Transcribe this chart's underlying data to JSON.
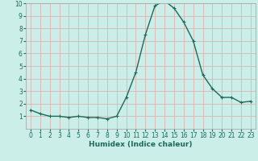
{
  "x": [
    0,
    1,
    2,
    3,
    4,
    5,
    6,
    7,
    8,
    9,
    10,
    11,
    12,
    13,
    14,
    15,
    16,
    17,
    18,
    19,
    20,
    21,
    22,
    23
  ],
  "y": [
    1.5,
    1.2,
    1.0,
    1.0,
    0.9,
    1.0,
    0.9,
    0.9,
    0.8,
    1.0,
    2.5,
    4.5,
    7.5,
    9.8,
    10.2,
    9.6,
    8.5,
    7.0,
    4.3,
    3.2,
    2.5,
    2.5,
    2.1,
    2.2
  ],
  "line_color": "#1a6b5a",
  "bg_color": "#cceee8",
  "grid_color": "#ddaaaa",
  "spine_color": "#aaaaaa",
  "xlabel": "Humidex (Indice chaleur)",
  "ylim": [
    0,
    10
  ],
  "xlim": [
    -0.5,
    23.5
  ],
  "yticks": [
    1,
    2,
    3,
    4,
    5,
    6,
    7,
    8,
    9,
    10
  ],
  "xticks": [
    0,
    1,
    2,
    3,
    4,
    5,
    6,
    7,
    8,
    9,
    10,
    11,
    12,
    13,
    14,
    15,
    16,
    17,
    18,
    19,
    20,
    21,
    22,
    23
  ],
  "label_fontsize": 6.5,
  "tick_fontsize": 5.5,
  "marker_size": 3,
  "linewidth": 1.0
}
